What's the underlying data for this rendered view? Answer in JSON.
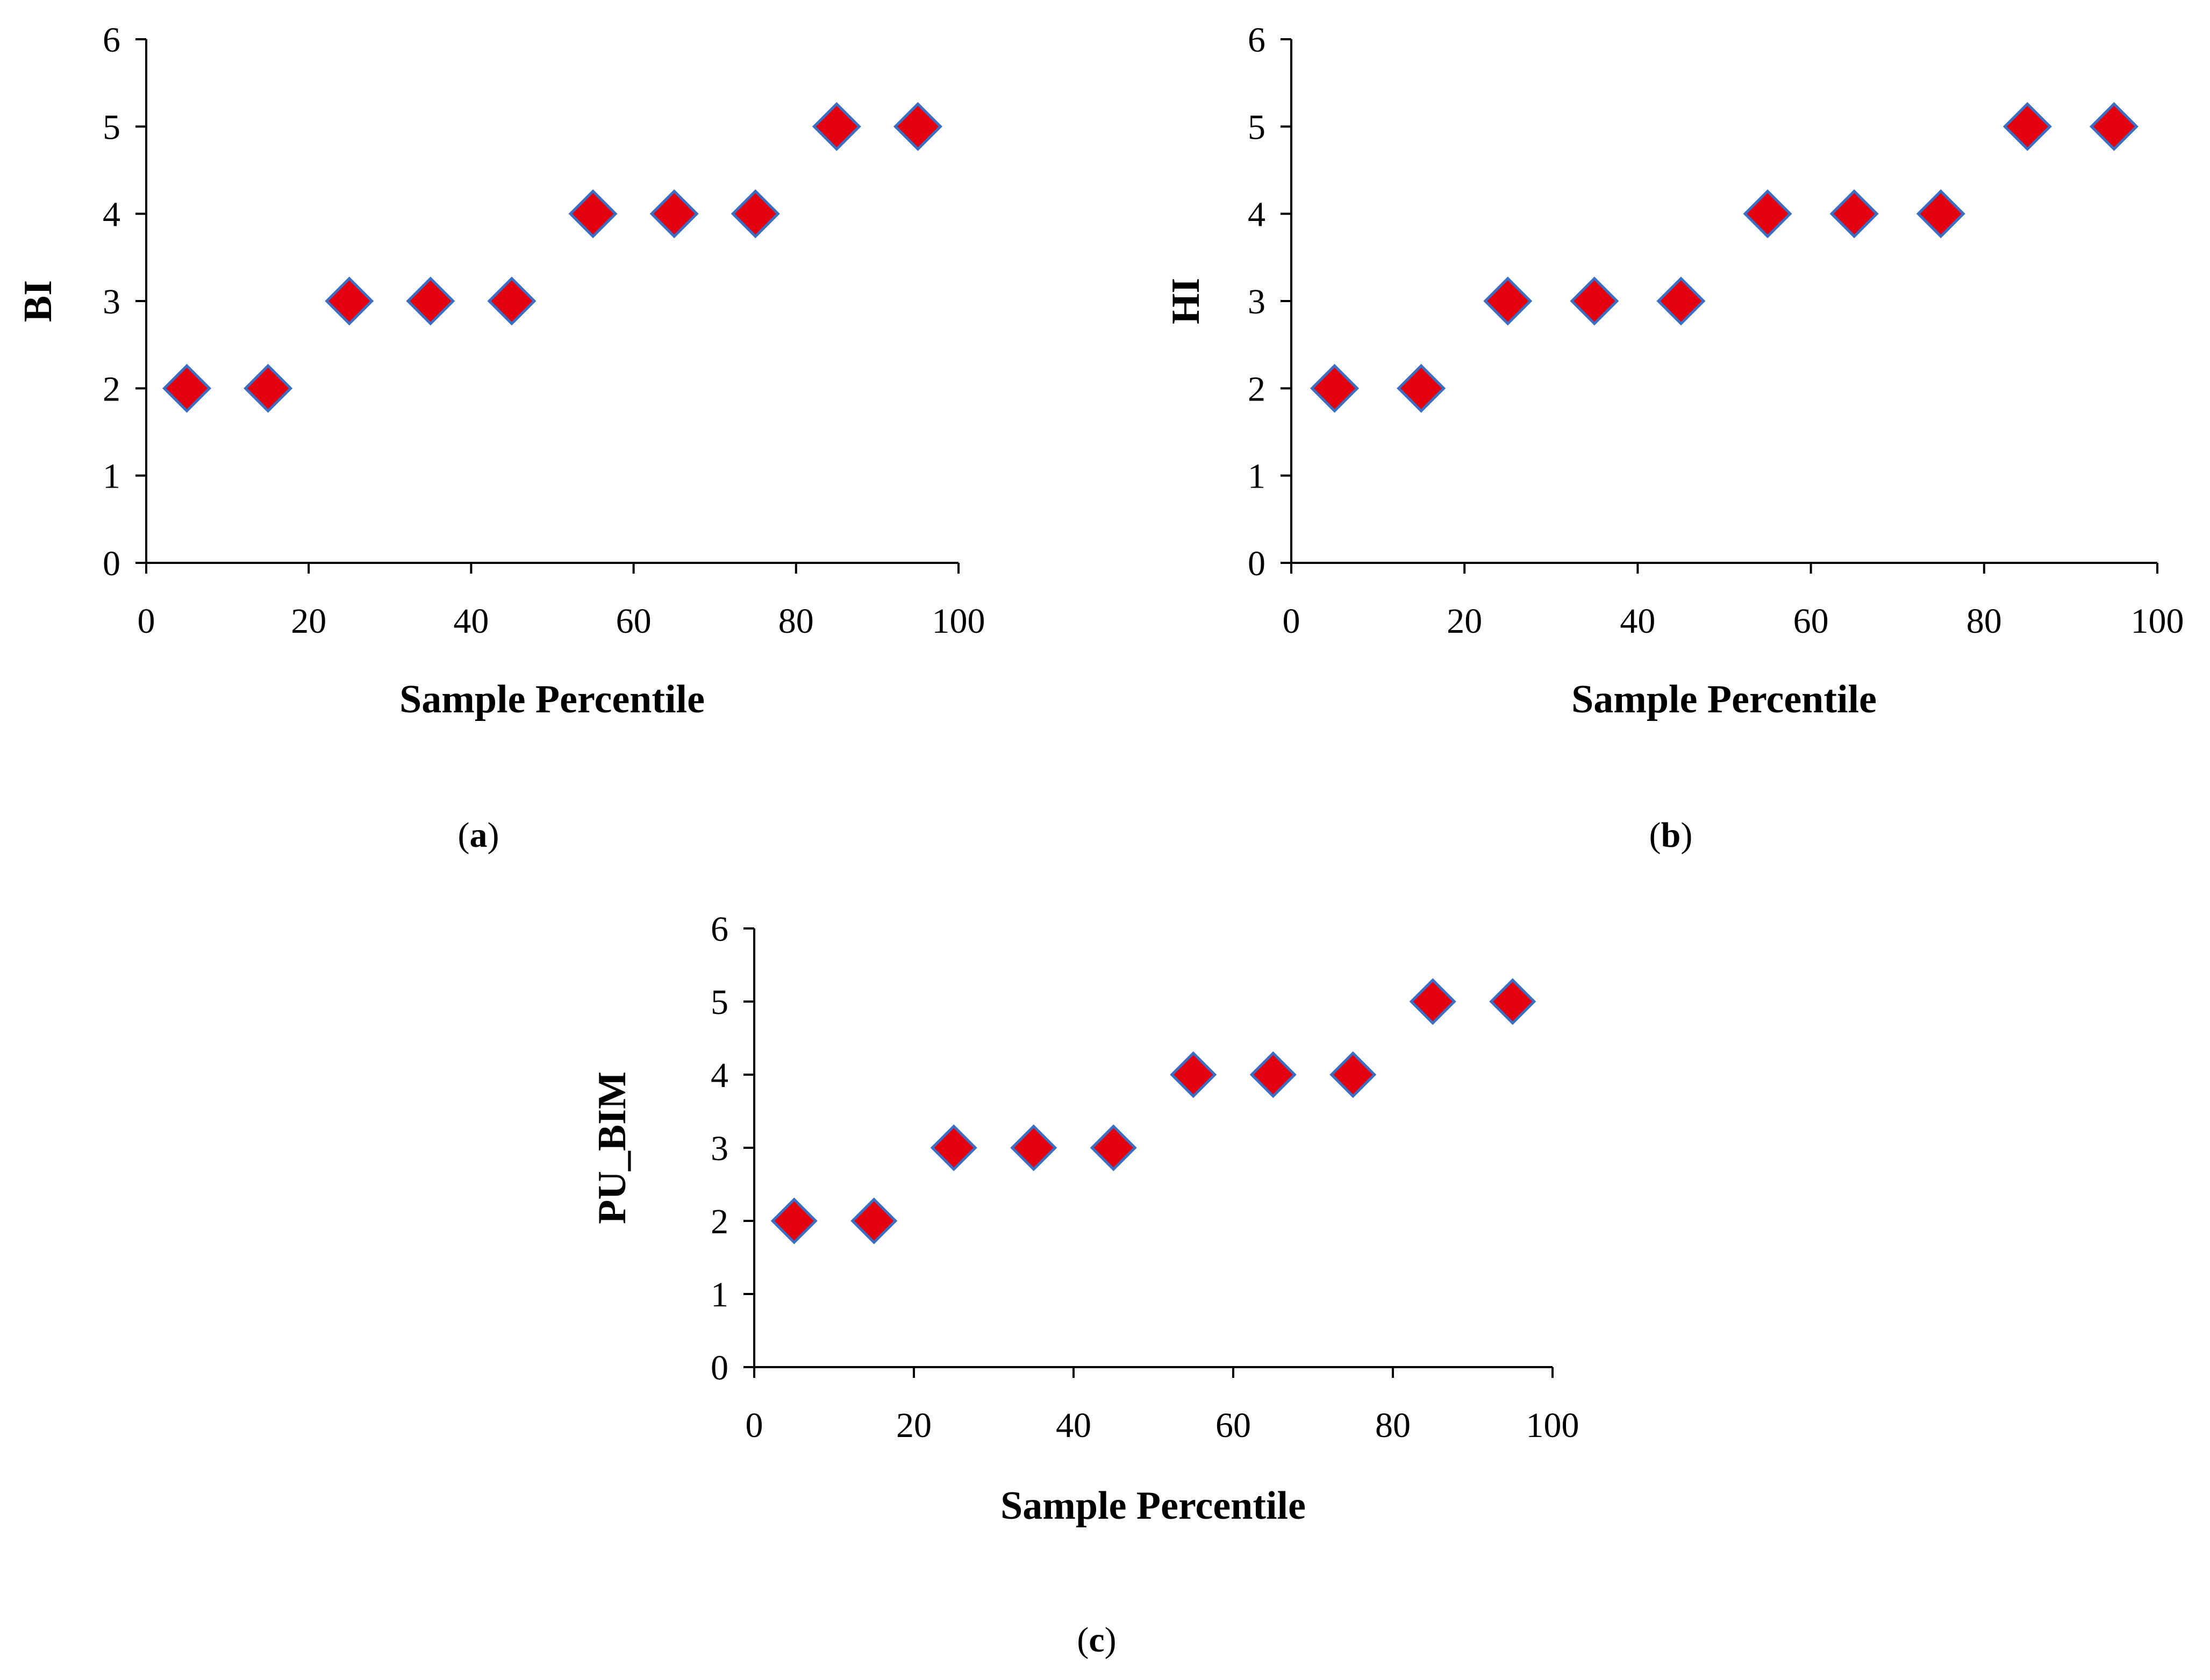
{
  "figure": {
    "panels": [
      {
        "caption_open": "(",
        "caption_letter": "a",
        "caption_close": ")"
      },
      {
        "caption_open": "(",
        "caption_letter": "b",
        "caption_close": ")"
      },
      {
        "caption_open": "(",
        "caption_letter": "c",
        "caption_close": ")"
      }
    ]
  },
  "colors": {
    "marker_fill": "#e3000f",
    "marker_stroke": "#3b6fc4",
    "axis": "#000000"
  },
  "chart_data": [
    {
      "type": "scatter",
      "title": "",
      "xlabel": "Sample Percentile",
      "ylabel": "BI",
      "x": [
        5,
        15,
        25,
        35,
        45,
        55,
        65,
        75,
        85,
        95
      ],
      "y": [
        2,
        2,
        3,
        3,
        3,
        4,
        4,
        4,
        5,
        5
      ],
      "xlim": [
        0,
        100
      ],
      "ylim": [
        0,
        6
      ],
      "xticks": [
        0,
        20,
        40,
        60,
        80,
        100
      ],
      "yticks": [
        0,
        1,
        2,
        3,
        4,
        5,
        6
      ],
      "marker": "diamond",
      "grid": false,
      "legend": "none"
    },
    {
      "type": "scatter",
      "title": "",
      "xlabel": "Sample Percentile",
      "ylabel": "HI",
      "x": [
        5,
        15,
        25,
        35,
        45,
        55,
        65,
        75,
        85,
        95
      ],
      "y": [
        2,
        2,
        3,
        3,
        3,
        4,
        4,
        4,
        5,
        5
      ],
      "xlim": [
        0,
        100
      ],
      "ylim": [
        0,
        6
      ],
      "xticks": [
        0,
        20,
        40,
        60,
        80,
        100
      ],
      "yticks": [
        0,
        1,
        2,
        3,
        4,
        5,
        6
      ],
      "marker": "diamond",
      "grid": false,
      "legend": "none"
    },
    {
      "type": "scatter",
      "title": "",
      "xlabel": "Sample Percentile",
      "ylabel": "PU_BIM",
      "x": [
        5,
        15,
        25,
        35,
        45,
        55,
        65,
        75,
        85,
        95
      ],
      "y": [
        2,
        2,
        3,
        3,
        3,
        4,
        4,
        4,
        5,
        5
      ],
      "xlim": [
        0,
        100
      ],
      "ylim": [
        0,
        6
      ],
      "xticks": [
        0,
        20,
        40,
        60,
        80,
        100
      ],
      "yticks": [
        0,
        1,
        2,
        3,
        4,
        5,
        6
      ],
      "marker": "diamond",
      "grid": false,
      "legend": "none"
    }
  ]
}
